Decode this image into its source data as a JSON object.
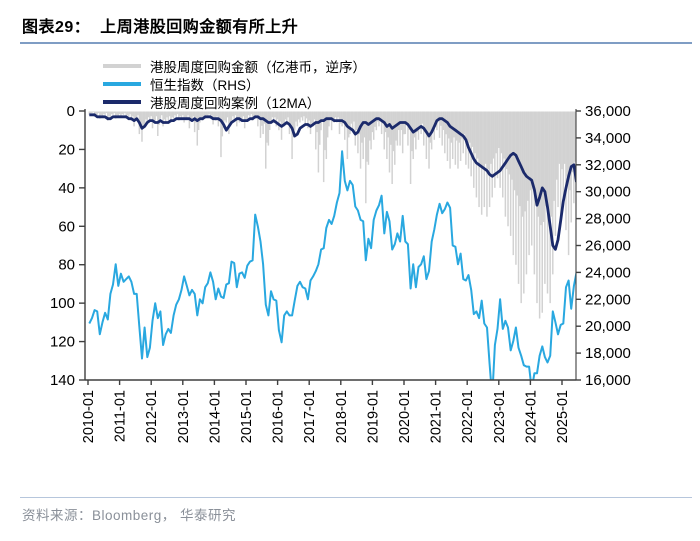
{
  "header": {
    "title": "图表29：  上周港股回购金额有所上升"
  },
  "footer": {
    "source_text": "资料来源：Bloomberg， 华泰研究"
  },
  "legend": {
    "items": [
      {
        "label": "港股周度回购金额（亿港币，逆序）",
        "color": "#d2d2d2"
      },
      {
        "label": "恒生指数（RHS）",
        "color": "#29a8e0"
      },
      {
        "label": "港股周度回购案例（12MA）",
        "color": "#1b2a6b"
      }
    ]
  },
  "chart_data": {
    "type": "combo",
    "x_axis": {
      "tick_labels": [
        "2010-01",
        "2011-01",
        "2012-01",
        "2013-01",
        "2014-01",
        "2015-01",
        "2016-01",
        "2017-01",
        "2018-01",
        "2019-01",
        "2020-01",
        "2021-01",
        "2022-01",
        "2023-01",
        "2024-01",
        "2025-01"
      ],
      "start_year": 2010,
      "months_per_point": 1
    },
    "left_axis": {
      "reversed": true,
      "min": 0,
      "max": 140,
      "tick_labels": [
        "0",
        "20",
        "40",
        "60",
        "80",
        "100",
        "120",
        "140"
      ]
    },
    "right_axis": {
      "min": 16000,
      "max": 36000,
      "tick_labels": [
        "36,000",
        "34,000",
        "32,000",
        "30,000",
        "28,000",
        "26,000",
        "24,000",
        "22,000",
        "20,000",
        "18,000",
        "16,000"
      ]
    },
    "series": [
      {
        "name": "港股周度回购金额（亿港币，逆序）",
        "type": "bar",
        "axis": "left",
        "color": "#d2d2d2",
        "values": [
          2,
          1,
          3,
          2,
          4,
          3,
          2,
          5,
          3,
          2,
          4,
          3,
          3,
          2,
          4,
          3,
          5,
          8,
          4,
          12,
          16,
          8,
          6,
          5,
          9,
          5,
          13,
          4,
          8,
          6,
          5,
          6,
          4,
          3,
          5,
          4,
          6,
          4,
          9,
          5,
          11,
          18,
          6,
          5,
          4,
          3,
          4,
          7,
          5,
          8,
          24,
          9,
          6,
          12,
          5,
          4,
          8,
          6,
          5,
          9,
          4,
          3,
          5,
          4,
          8,
          14,
          12,
          30,
          18,
          6,
          6,
          8,
          10,
          15,
          8,
          6,
          12,
          25,
          10,
          8,
          6,
          5,
          7,
          9,
          12,
          8,
          20,
          32,
          10,
          37,
          25,
          8,
          10,
          6,
          6,
          12,
          8,
          15,
          25,
          12,
          10,
          18,
          22,
          30,
          25,
          48,
          28,
          20,
          15,
          10,
          8,
          12,
          20,
          25,
          32,
          38,
          28,
          18,
          18,
          22,
          12,
          18,
          38,
          25,
          20,
          15,
          12,
          18,
          25,
          30,
          20,
          15,
          10,
          14,
          18,
          22,
          26,
          30,
          25,
          28,
          30,
          26,
          22,
          28,
          30,
          34,
          40,
          45,
          50,
          54,
          50,
          55,
          50,
          45,
          40,
          35,
          40,
          45,
          55,
          60,
          65,
          75,
          80,
          90,
          100,
          95,
          85,
          75,
          70,
          85,
          100,
          108,
          105,
          90,
          95,
          100,
          85,
          65,
          50,
          55,
          50,
          62,
          75,
          58,
          48,
          65
        ]
      },
      {
        "name": "恒生指数（RHS）",
        "type": "line",
        "axis": "right",
        "color": "#29a8e0",
        "values": [
          20200,
          20600,
          21200,
          21100,
          19400,
          20300,
          21000,
          20500,
          22400,
          23100,
          24600,
          23000,
          23900,
          23300,
          23500,
          23700,
          23300,
          22400,
          22400,
          20000,
          17600,
          19900,
          17700,
          18400,
          20400,
          21700,
          20600,
          21100,
          18600,
          19400,
          19800,
          19500,
          20800,
          21600,
          22000,
          22700,
          23700,
          23000,
          22300,
          22700,
          22400,
          20800,
          22000,
          21700,
          22900,
          23200,
          24000,
          23300,
          22000,
          22800,
          22200,
          22100,
          23100,
          23200,
          24800,
          24700,
          22900,
          23900,
          24000,
          23600,
          24500,
          24800,
          24900,
          28300,
          27400,
          26300,
          24600,
          21600,
          20800,
          22600,
          22000,
          21900,
          19700,
          18800,
          20800,
          21100,
          20800,
          20800,
          21900,
          23000,
          23300,
          22900,
          22800,
          22000,
          23400,
          23700,
          24100,
          24600,
          25700,
          25800,
          27300,
          27900,
          27600,
          28200,
          29200,
          29900,
          33000,
          30800,
          30100,
          30800,
          30500,
          28900,
          28600,
          27900,
          27800,
          24900,
          26500,
          25800,
          27900,
          28600,
          29000,
          29700,
          26900,
          28500,
          27800,
          25700,
          26100,
          26900,
          26300,
          28200,
          26300,
          26100,
          22800,
          24600,
          22900,
          24400,
          24600,
          25200,
          23500,
          24100,
          26300,
          27200,
          28300,
          29100,
          28400,
          28700,
          29200,
          28800,
          26000,
          25900,
          24600,
          25400,
          23500,
          23400,
          23800,
          22700,
          20900,
          21100,
          20600,
          21900,
          20200,
          19900,
          17200,
          14700,
          18600,
          19800,
          22000,
          19800,
          20400,
          19900,
          18200,
          18900,
          19900,
          18400,
          17800,
          17100,
          17000,
          17000,
          15300,
          16500,
          16500,
          17800,
          18500,
          17700,
          17300,
          17800,
          21100,
          20300,
          19400,
          20100,
          20200,
          22900,
          23400,
          21300,
          23000,
          24000
        ]
      },
      {
        "name": "港股周度回购案例（12MA）",
        "type": "line",
        "axis": "left",
        "color": "#1b2a6b",
        "values": [
          2,
          2,
          2,
          3,
          3,
          3,
          3,
          4,
          4,
          3,
          3,
          3,
          3,
          3,
          3,
          4,
          4,
          5,
          4,
          6,
          9,
          8,
          6,
          5,
          5,
          6,
          6,
          5,
          6,
          6,
          6,
          5,
          5,
          4,
          4,
          4,
          4,
          4,
          4,
          5,
          4,
          5,
          4,
          4,
          3,
          3,
          3,
          4,
          4,
          4,
          5,
          7,
          10,
          8,
          6,
          5,
          4,
          4,
          5,
          5,
          5,
          4,
          4,
          3,
          3,
          4,
          4,
          5,
          6,
          6,
          5,
          6,
          7,
          8,
          7,
          6,
          7,
          9,
          13,
          12,
          9,
          8,
          7,
          7,
          8,
          7,
          6,
          6,
          5,
          5,
          4,
          4,
          4,
          5,
          5,
          5,
          5,
          6,
          8,
          9,
          10,
          12,
          11,
          8,
          6,
          6,
          7,
          6,
          5,
          4,
          4,
          5,
          6,
          8,
          7,
          9,
          8,
          7,
          6,
          6,
          6,
          7,
          9,
          11,
          10,
          9,
          8,
          9,
          11,
          13,
          11,
          8,
          5,
          4,
          4,
          5,
          6,
          8,
          9,
          10,
          11,
          12,
          13,
          15,
          19,
          22,
          25,
          27,
          28,
          29,
          30,
          31,
          33,
          34,
          33,
          32,
          31,
          29,
          27,
          25,
          23,
          22,
          23,
          26,
          29,
          32,
          34,
          35,
          36,
          41,
          49,
          45,
          40,
          42,
          50,
          60,
          70,
          72,
          67,
          57,
          47,
          40,
          34,
          29,
          28,
          37
        ]
      }
    ]
  }
}
